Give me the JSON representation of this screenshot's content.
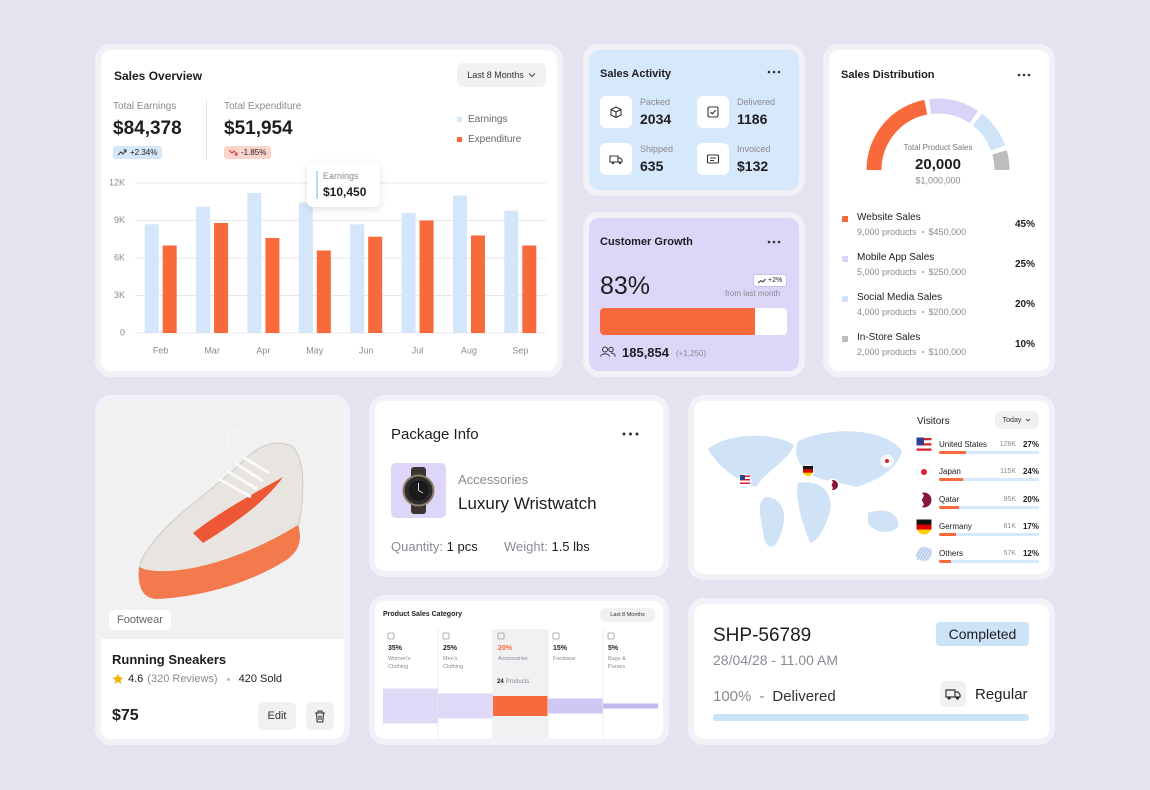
{
  "sales_overview": {
    "title": "Sales Overview",
    "period": "Last 8 Months",
    "total_earnings": {
      "label": "Total Earnings",
      "value": "$84,378",
      "change": "+2.34%"
    },
    "total_expenditure": {
      "label": "Total Expenditure",
      "value": "$51,954",
      "change": "-1.85%"
    },
    "tooltip": {
      "label": "Earnings",
      "value": "$10,450"
    },
    "chart_data": {
      "type": "bar",
      "categories": [
        "Feb",
        "Mar",
        "Apr",
        "May",
        "Jun",
        "Jul",
        "Aug",
        "Sep"
      ],
      "series": [
        {
          "name": "Earnings",
          "color": "#d3e6fa",
          "values": [
            8700,
            10100,
            11200,
            10450,
            8700,
            9600,
            11000,
            9800
          ]
        },
        {
          "name": "Expenditure",
          "color": "#f8693c",
          "values": [
            7000,
            8800,
            7600,
            6600,
            7700,
            9000,
            7800,
            7000
          ]
        }
      ],
      "ylim": [
        0,
        12000
      ],
      "yticks": [
        0,
        {
          "value": 3000,
          "label": "3K"
        },
        {
          "value": 6000,
          "label": "6K"
        },
        {
          "value": 9000,
          "label": "9K"
        },
        {
          "value": 12000,
          "label": "12K"
        }
      ],
      "grid": true
    }
  },
  "sales_activity": {
    "title": "Sales Activity",
    "items": [
      {
        "label": "Packed",
        "value": 2034
      },
      {
        "label": "Delivered",
        "value": 1186
      },
      {
        "label": "Shipped",
        "value": 635
      },
      {
        "label": "Invoiced",
        "value": "$132"
      }
    ]
  },
  "customer_growth": {
    "title": "Customer Growth",
    "growth": {
      "value": 83,
      "label": "83%"
    },
    "change": "+2%",
    "change_note": "from last month",
    "customers": "185,854",
    "customers_change": "(+1,250)"
  },
  "sales_distribution": {
    "title": "Sales Distribution",
    "gauge_label": "Total Product Sales",
    "total": "20,000",
    "total_value": "$1,000,000",
    "items": [
      {
        "name": "Website Sales",
        "color": "#f8693c",
        "products": "9,000 products",
        "amount": "$450,000",
        "share": {
          "value": 45,
          "label": "45%"
        }
      },
      {
        "name": "Mobile App Sales",
        "color": "#dad3f7",
        "products": "5,000 products",
        "amount": "$250,000",
        "share": {
          "value": 25,
          "label": "25%"
        }
      },
      {
        "name": "Social Media Sales",
        "color": "#cfe4f8",
        "products": "4,000 products",
        "amount": "$200,000",
        "share": {
          "value": 20,
          "label": "20%"
        }
      },
      {
        "name": "In-Store Sales",
        "color": "#bdbdbd",
        "products": "2,000 products",
        "amount": "$100,000",
        "share": {
          "value": 10,
          "label": "10%"
        }
      }
    ]
  },
  "product": {
    "category": "Footwear",
    "name": "Running Sneakers",
    "rating": "4.6",
    "reviews": "(320 Reviews)",
    "sold": "420 Sold",
    "price": "$75",
    "edit": "Edit"
  },
  "package_info": {
    "title": "Package Info",
    "category": "Accessories",
    "product": "Luxury Wristwatch",
    "quantity_label": "Quantity:",
    "quantity": "1 pcs",
    "weight_label": "Weight:",
    "weight": "1.5 lbs"
  },
  "visitors": {
    "title": "Visitors",
    "period": "Today",
    "countries": [
      {
        "name": "United States",
        "visits": "128K",
        "share": {
          "value": 27,
          "label": "27%"
        }
      },
      {
        "name": "Japan",
        "visits": "115K",
        "share": {
          "value": 24,
          "label": "24%"
        }
      },
      {
        "name": "Qatar",
        "visits": "95K",
        "share": {
          "value": 20,
          "label": "20%"
        }
      },
      {
        "name": "Germany",
        "visits": "81K",
        "share": {
          "value": 17,
          "label": "17%"
        }
      },
      {
        "name": "Others",
        "visits": "57K",
        "share": {
          "value": 12,
          "label": "12%"
        }
      }
    ]
  },
  "product_sales_category": {
    "title": "Product Sales Category",
    "period": "Last 8 Months",
    "categories": [
      {
        "name": "Women's Clothing",
        "color": "#d9d2f6",
        "share": {
          "value": 35,
          "label": "35%"
        }
      },
      {
        "name": "Men's Clothing",
        "color": "#d9d2f6",
        "share": {
          "value": 25,
          "label": "25%"
        }
      },
      {
        "name": "Accessories",
        "color": "#f8693c",
        "share": {
          "value": 20,
          "label": "20%"
        },
        "detail": {
          "count": "24",
          "label": "Products"
        }
      },
      {
        "name": "Footwear",
        "color": "#c9bdf3",
        "share": {
          "value": 15,
          "label": "15%"
        }
      },
      {
        "name": "Bags & Purses",
        "color": "#b9a9ef",
        "share": {
          "value": 5,
          "label": "5%"
        }
      }
    ]
  },
  "shipment": {
    "id": "SHP-56789",
    "status": "Completed",
    "datetime": "28/04/28 - 11.00 AM",
    "progress": {
      "value": 100,
      "label": "100%"
    },
    "separator": "-",
    "progress_status": "Delivered",
    "method": "Regular"
  }
}
